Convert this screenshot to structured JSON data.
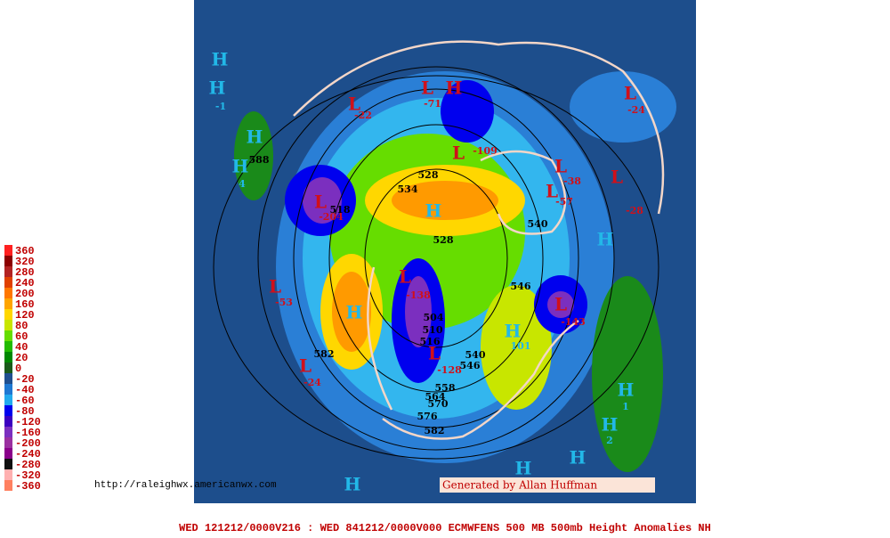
{
  "legend": {
    "labels": [
      "360",
      "320",
      "280",
      "240",
      "200",
      "160",
      "120",
      "80",
      "60",
      "40",
      "20",
      "0",
      "-20",
      "-40",
      "-60",
      "-80",
      "-120",
      "-160",
      "-200",
      "-240",
      "-280",
      "-320",
      "-360"
    ],
    "colors": [
      "#ff2020",
      "#8b0000",
      "#b22222",
      "#e04000",
      "#ff7700",
      "#ffa500",
      "#ffd700",
      "#c8e600",
      "#66dd00",
      "#22bb00",
      "#008800",
      "#1a5a1a",
      "#1f4f8f",
      "#1e78d2",
      "#22aaee",
      "#0000ee",
      "#3b00c0",
      "#7b2fbf",
      "#9b30a0",
      "#8a008a",
      "#101010",
      "#ffb0b0",
      "#ff8060"
    ]
  },
  "map": {
    "labels": [
      "L",
      "-22",
      "L",
      "-71",
      "H",
      "L",
      "-24",
      "H",
      "H",
      "-1",
      "H",
      "588",
      "H",
      "4",
      "L",
      "-204",
      "518",
      "534",
      "528",
      "L",
      "-109",
      "H",
      "528",
      "540",
      "L",
      "-38",
      "L",
      "-57",
      "L",
      "-28",
      "H",
      "L",
      "-53",
      "H",
      "L",
      "-138",
      "504",
      "510",
      "516",
      "546",
      "L",
      "-143",
      "H",
      "101",
      "582",
      "L",
      "-24",
      "L",
      "-128",
      "540",
      "546",
      "558",
      "564",
      "570",
      "576",
      "582",
      "H",
      "1",
      "H",
      "2",
      "H",
      "H",
      "H"
    ]
  },
  "url": "http://raleighwx.americanwx.com",
  "credit": "Generated by Allan Huffman",
  "footer": "WED 121212/0000V216 : WED 841212/0000V000  ECMWFENS  500 MB 500mb Height Anomalies NH"
}
